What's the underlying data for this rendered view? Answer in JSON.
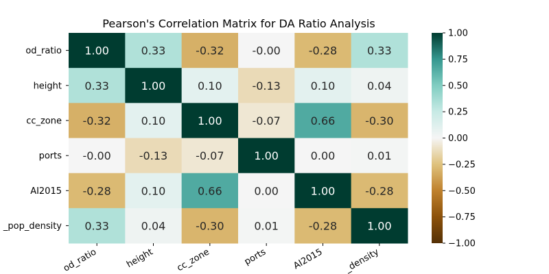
{
  "chart_data": {
    "type": "heatmap",
    "title": "Pearson's Correlation Matrix for DA Ratio Analysis",
    "row_labels": [
      "od_ratio",
      "height",
      "cc_zone",
      "ports",
      "AI2015",
      "_pop_density"
    ],
    "col_labels": [
      "od_ratio",
      "height",
      "cc_zone",
      "ports",
      "AI2015",
      "_density"
    ],
    "values": [
      [
        1.0,
        0.33,
        -0.32,
        -0.0,
        -0.28,
        0.33
      ],
      [
        0.33,
        1.0,
        0.1,
        -0.13,
        0.1,
        0.04
      ],
      [
        -0.32,
        0.1,
        1.0,
        -0.07,
        0.66,
        -0.3
      ],
      [
        -0.0,
        -0.13,
        -0.07,
        1.0,
        0.0,
        0.01
      ],
      [
        -0.28,
        0.1,
        0.66,
        0.0,
        1.0,
        -0.28
      ],
      [
        0.33,
        0.04,
        -0.3,
        0.01,
        -0.28,
        1.0
      ]
    ],
    "value_labels": [
      [
        "1.00",
        "0.33",
        "-0.32",
        "-0.00",
        "-0.28",
        "0.33"
      ],
      [
        "0.33",
        "1.00",
        "0.10",
        "-0.13",
        "0.10",
        "0.04"
      ],
      [
        "-0.32",
        "0.10",
        "1.00",
        "-0.07",
        "0.66",
        "-0.30"
      ],
      [
        "-0.00",
        "-0.13",
        "-0.07",
        "1.00",
        "0.00",
        "0.01"
      ],
      [
        "-0.28",
        "0.10",
        "0.66",
        "0.00",
        "1.00",
        "-0.28"
      ],
      [
        "0.33",
        "0.04",
        "-0.30",
        "0.01",
        "-0.28",
        "1.00"
      ]
    ],
    "colormap": "BrBG",
    "vmin": -1.0,
    "vmax": 1.0,
    "colorbar_ticks": [
      "1.00",
      "0.75",
      "0.50",
      "0.25",
      "0.00",
      "−0.25",
      "−0.50",
      "−0.75",
      "−1.00"
    ]
  }
}
